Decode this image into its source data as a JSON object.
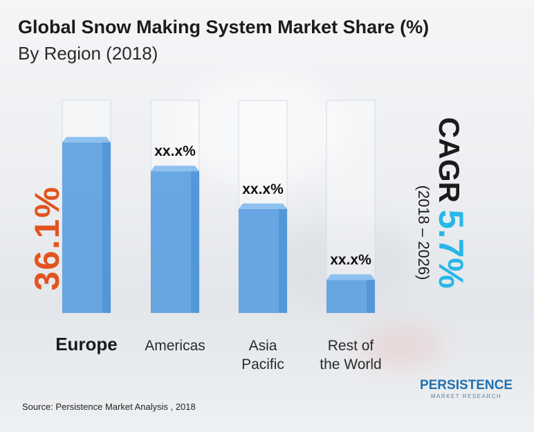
{
  "title": "Global Snow Making System Market Share (%)",
  "subtitle": "By Region (2018)",
  "chart_data": {
    "type": "bar",
    "categories": [
      "Europe",
      "Americas",
      "Asia\nPacific",
      "Rest of\nthe World"
    ],
    "values": [
      36.1,
      30.0,
      22.0,
      7.0
    ],
    "value_labels": [
      "36.1%",
      "xx.x%",
      "xx.x%",
      "xx.x%"
    ],
    "ylim": [
      0,
      45
    ],
    "grid": false
  },
  "cagr": {
    "label": "CAGR",
    "value": "5.7%",
    "period": "(2018 – 2026)"
  },
  "source": "Source: Persistence Market Analysis , 2018",
  "logo": {
    "line1": "PERSISTENCE",
    "line2": "MARKET RESEARCH"
  },
  "colors": {
    "bar": "#5b9fe0",
    "highlight_value": "#e2541e",
    "cagr_value": "#27b7e8"
  }
}
